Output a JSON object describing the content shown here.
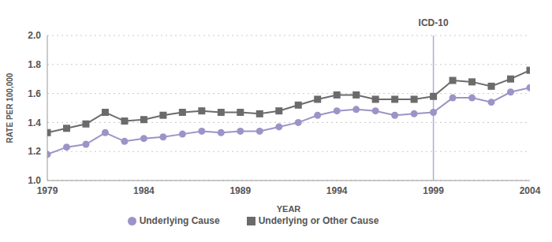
{
  "chart_data": {
    "type": "line",
    "x_label": "YEAR",
    "y_label": "RATE PER 100,000",
    "x": [
      1979,
      1980,
      1981,
      1982,
      1983,
      1984,
      1985,
      1986,
      1987,
      1988,
      1989,
      1990,
      1991,
      1992,
      1993,
      1994,
      1995,
      1996,
      1997,
      1998,
      1999,
      2000,
      2001,
      2002,
      2003,
      2004
    ],
    "series": [
      {
        "name": "Underlying Cause",
        "color": "#9d93c7",
        "marker": "circle",
        "values": [
          1.18,
          1.23,
          1.25,
          1.33,
          1.27,
          1.29,
          1.3,
          1.32,
          1.34,
          1.33,
          1.34,
          1.34,
          1.37,
          1.4,
          1.45,
          1.48,
          1.49,
          1.48,
          1.45,
          1.46,
          1.47,
          1.57,
          1.57,
          1.54,
          1.61,
          1.64
        ]
      },
      {
        "name": "Underlying or Other Cause",
        "color": "#6d6a6c",
        "marker": "square",
        "values": [
          1.33,
          1.36,
          1.39,
          1.47,
          1.41,
          1.42,
          1.45,
          1.47,
          1.48,
          1.47,
          1.47,
          1.46,
          1.48,
          1.52,
          1.56,
          1.59,
          1.59,
          1.56,
          1.56,
          1.56,
          1.58,
          1.69,
          1.68,
          1.65,
          1.7,
          1.76
        ]
      }
    ],
    "xlim": [
      1979,
      2004
    ],
    "xticks": [
      1979,
      1984,
      1989,
      1994,
      1999,
      2004
    ],
    "ylim": [
      1,
      2
    ],
    "yticks": [
      {
        "value": 1,
        "label": "1.0"
      },
      1.2,
      1.4,
      1.6,
      1.8,
      {
        "value": 2,
        "label": "2.0"
      }
    ],
    "grid": true,
    "legend": "bottom",
    "annotations": [
      {
        "x": 1999,
        "label": "ICD-10"
      }
    ]
  }
}
